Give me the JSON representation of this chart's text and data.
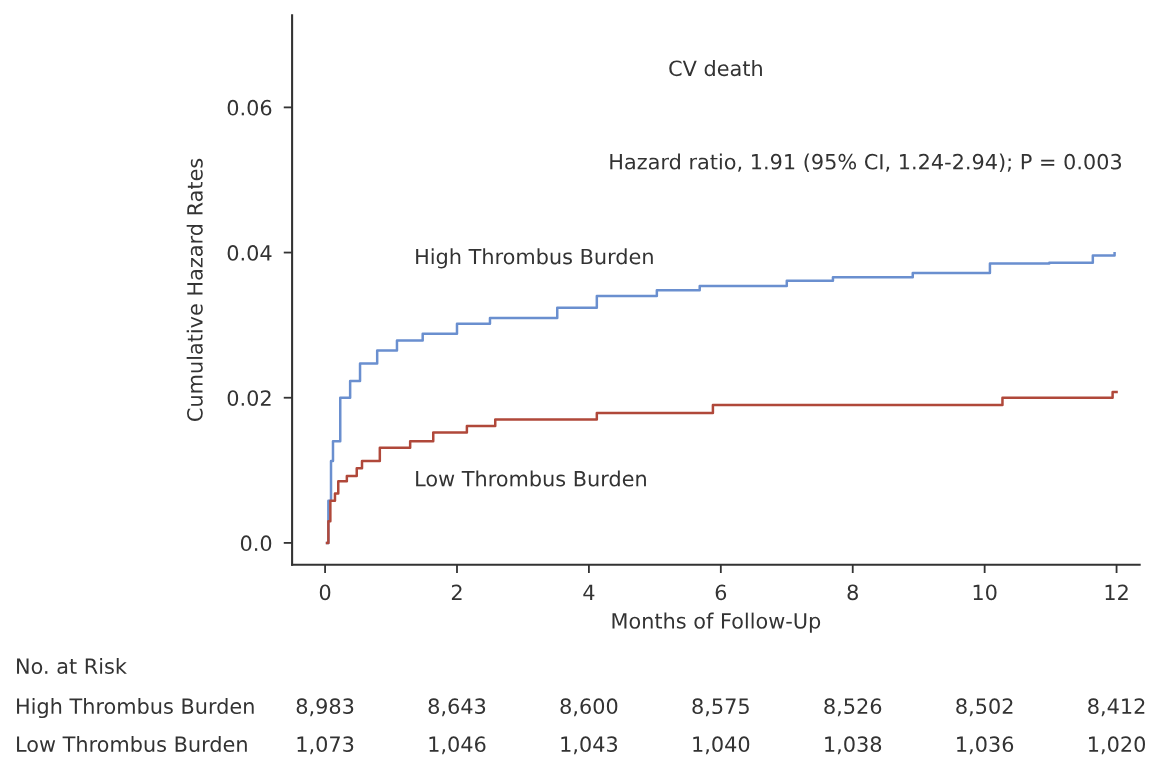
{
  "chart_data": {
    "type": "step",
    "xlabel": "Months of Follow-Up",
    "ylabel": "Cumulative Hazard Rates",
    "xlim": [
      -0.5,
      12.35
    ],
    "ylim": [
      -0.003,
      0.0727
    ],
    "xticks": [
      0,
      2,
      4,
      6,
      8,
      10,
      12
    ],
    "yticks": [
      {
        "value": 0,
        "label": "0.0"
      },
      0.02,
      0.04,
      0.06
    ],
    "grid": false,
    "legend": false,
    "marker": "none",
    "line_style": "solid",
    "series": [
      {
        "name": "High Thrombus Burden",
        "color": "#6a8fcf",
        "x": [
          0.03,
          0.05,
          0.09,
          0.12,
          0.23,
          0.38,
          0.53,
          0.79,
          1.09,
          1.48,
          2.0,
          2.5,
          3.52,
          4.12,
          5.03,
          5.68,
          7.0,
          7.7,
          8.91,
          10.08,
          10.98,
          11.64,
          11.97
        ],
        "values": [
          0,
          0.0058,
          0.0113,
          0.014,
          0.02,
          0.0223,
          0.0247,
          0.0265,
          0.0279,
          0.0288,
          0.0302,
          0.031,
          0.0324,
          0.034,
          0.0348,
          0.0354,
          0.0361,
          0.0366,
          0.0372,
          0.0385,
          0.0386,
          0.0396,
          0.0399
        ]
      },
      {
        "name": "Low Thrombus Burden",
        "color": "#b0483a",
        "x": [
          0.03,
          0.05,
          0.08,
          0.15,
          0.2,
          0.33,
          0.48,
          0.56,
          0.83,
          1.29,
          1.64,
          2.15,
          2.58,
          4.12,
          5.88,
          10.27,
          11.94,
          12.0
        ],
        "values": [
          0,
          0.003,
          0.0058,
          0.0068,
          0.0085,
          0.0092,
          0.0103,
          0.0113,
          0.0131,
          0.014,
          0.0152,
          0.0161,
          0.017,
          0.0179,
          0.019,
          0.02,
          0.0208,
          0.0208
        ]
      }
    ],
    "annotations": [
      "CV death",
      "Hazard ratio, 1.91 (95% CI, 1.24-2.94); P = 0.003",
      "No. at Risk",
      "High Thrombus Burden",
      "8,983",
      "8,643",
      "8,600",
      "8,575",
      "8,526",
      "8,502",
      "8,412",
      "Low Thrombus Burden",
      "1,073",
      "1,046",
      "1,043",
      "1,040",
      "1,038",
      "1,036",
      "1,020"
    ]
  }
}
